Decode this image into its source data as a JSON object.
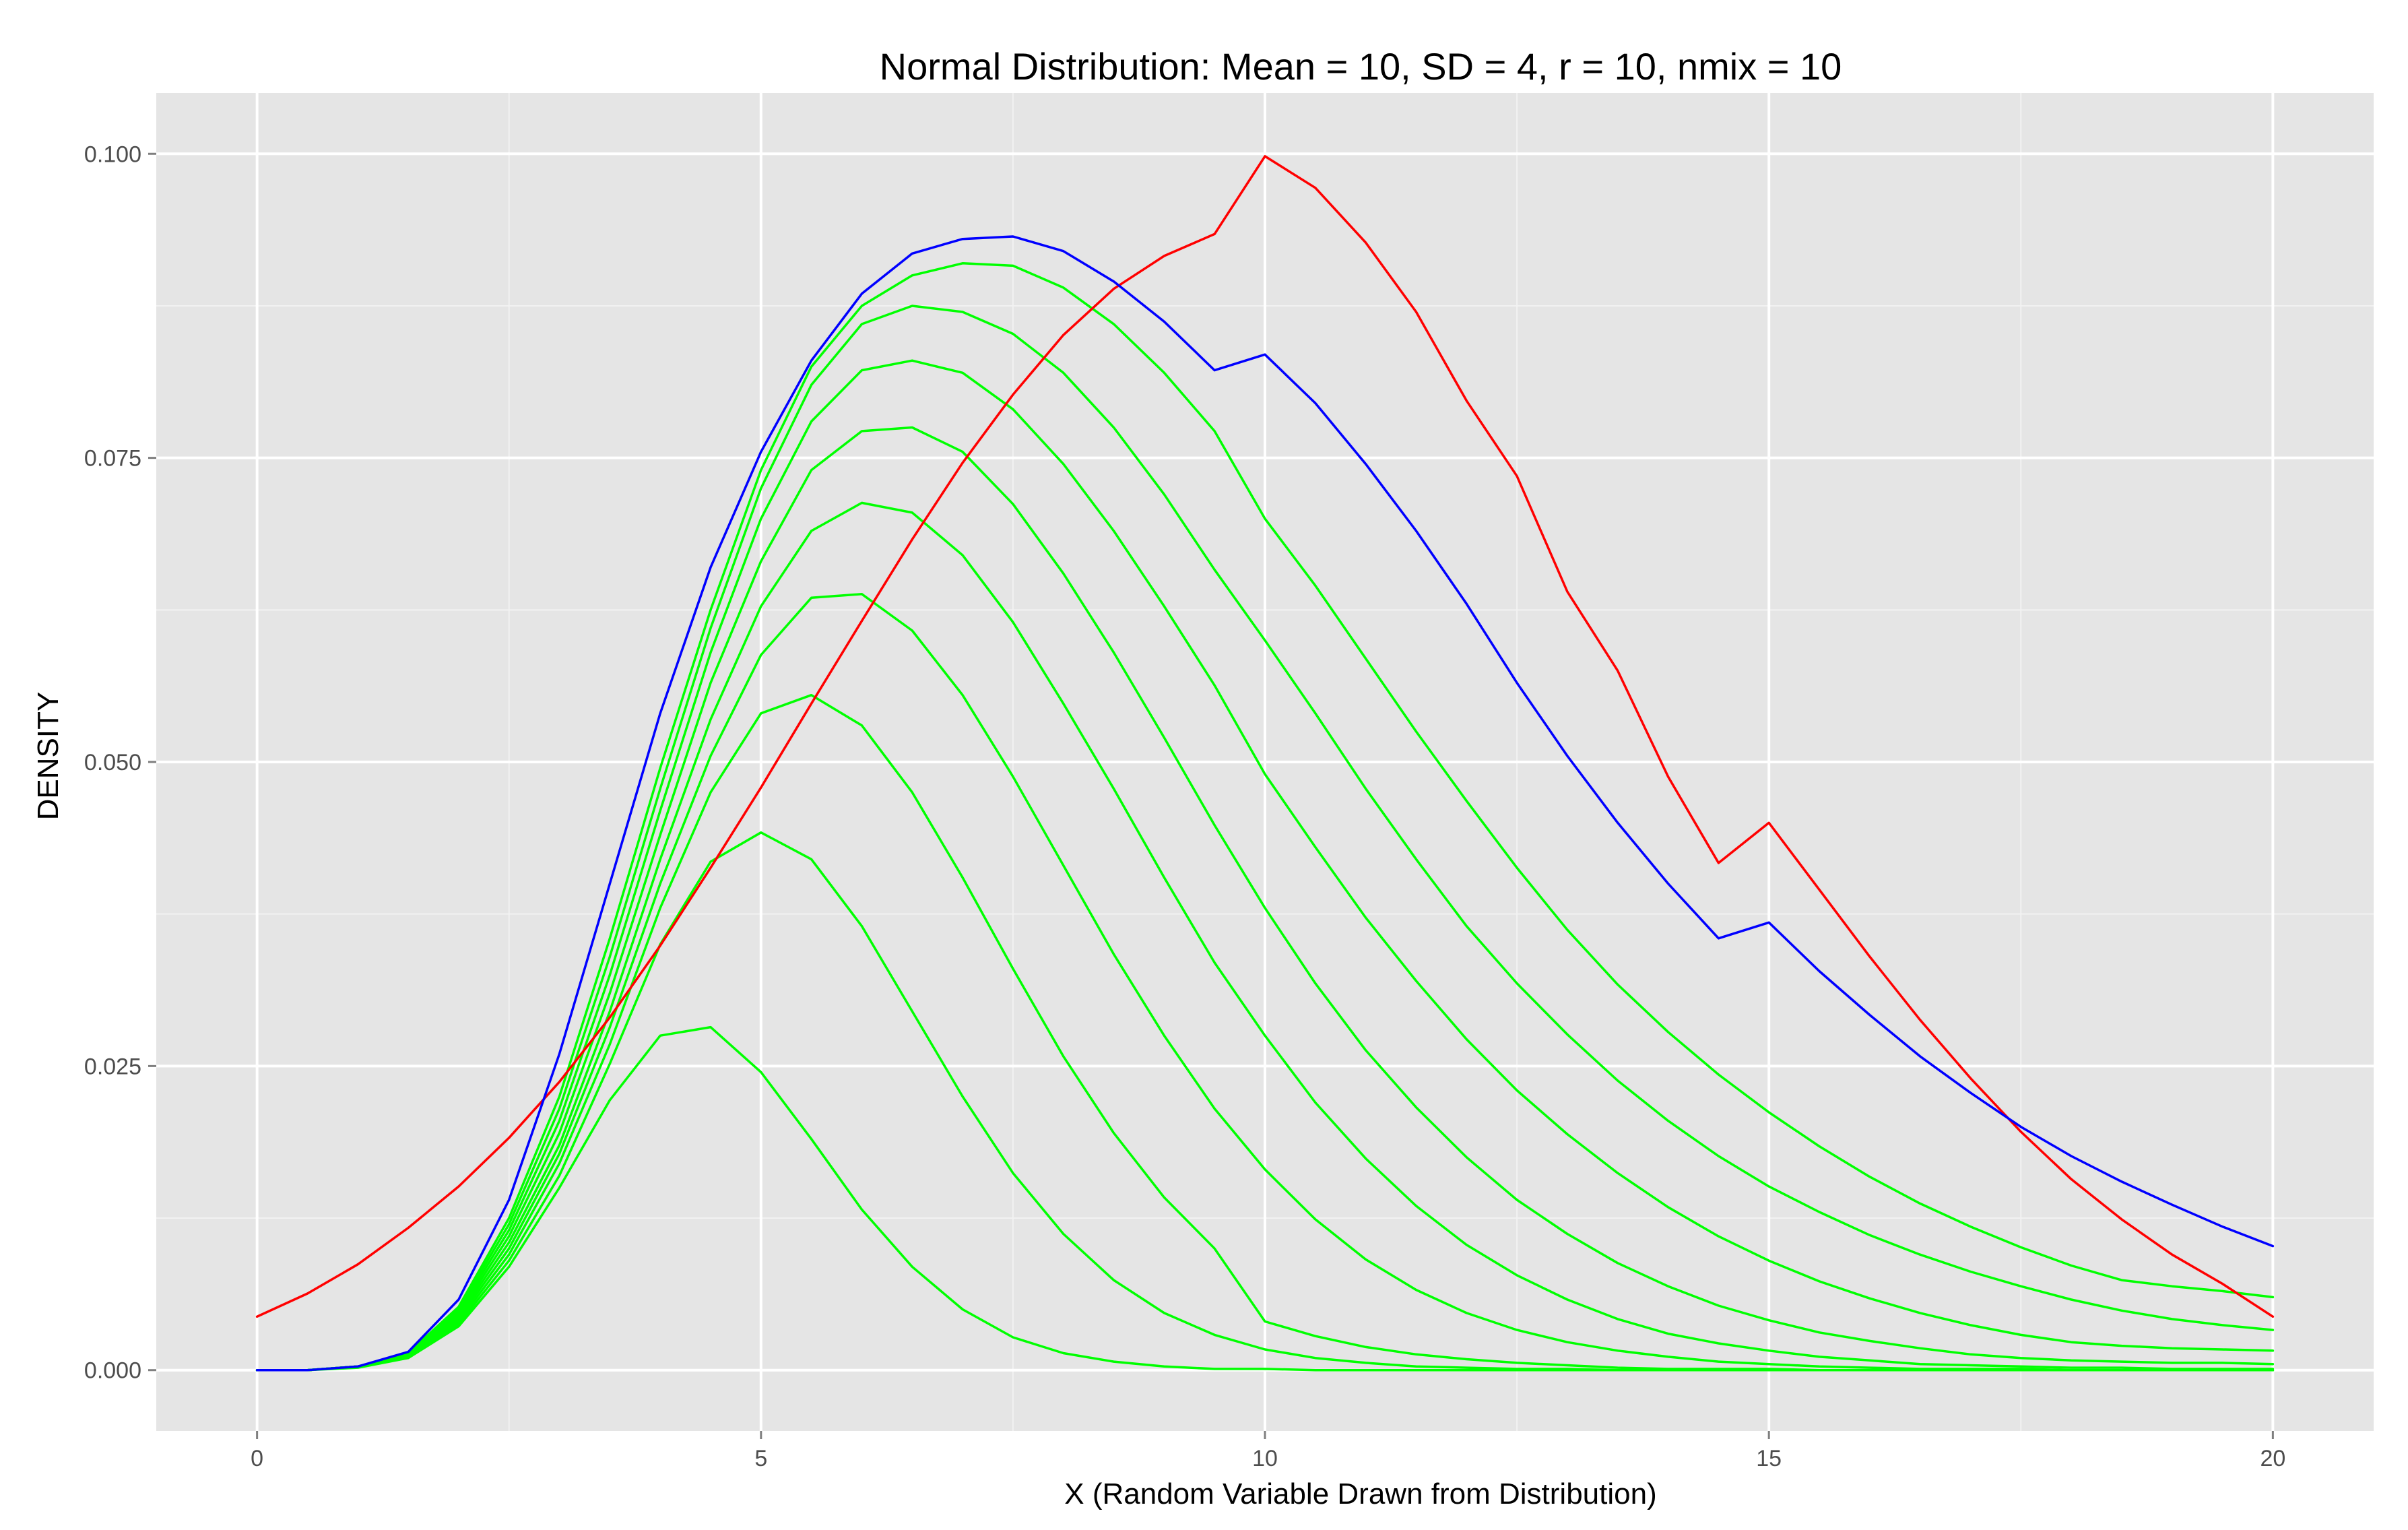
{
  "chart_data": {
    "type": "line",
    "title": "Normal Distribution: Mean = 10, SD = 4, r = 10, nmix = 10",
    "xlabel": "X (Random Variable Drawn from Distribution)",
    "ylabel": "DENSITY",
    "xlim": [
      -1,
      21
    ],
    "ylim": [
      -0.005,
      0.105
    ],
    "x_ticks": [
      0,
      5,
      10,
      15,
      20
    ],
    "x_tick_labels": [
      "0",
      "5",
      "10",
      "15",
      "20"
    ],
    "y_ticks": [
      0,
      0.025,
      0.05,
      0.075,
      0.1
    ],
    "y_tick_labels": [
      "0.000",
      "0.025",
      "0.050",
      "0.075",
      "0.100"
    ],
    "grid": true,
    "legend": "none",
    "background": "#e5e5e5",
    "colors": {
      "normal": "#ff0000",
      "mixture": "#0000ff",
      "component": "#00ff00"
    },
    "x": [
      0,
      0.5,
      1,
      1.5,
      2,
      2.5,
      3,
      3.5,
      4,
      4.5,
      5,
      5.5,
      6,
      6.5,
      7,
      7.5,
      8,
      8.5,
      9,
      9.5,
      10,
      10.5,
      11,
      11.5,
      12,
      12.5,
      13,
      13.5,
      14,
      14.5,
      15,
      15.5,
      16,
      16.5,
      17,
      17.5,
      18,
      18.5,
      19,
      19.5,
      20
    ],
    "series": [
      {
        "color": "red",
        "values": [
          0.0044,
          0.0063,
          0.0087,
          0.0117,
          0.0151,
          0.0191,
          0.0237,
          0.029,
          0.0349,
          0.0413,
          0.0479,
          0.0548,
          0.0616,
          0.0683,
          0.0746,
          0.0802,
          0.0851,
          0.0889,
          0.0916,
          0.0934,
          0.0998,
          0.0972,
          0.0927,
          0.087,
          0.0797,
          0.0735,
          0.064,
          0.0575,
          0.0488,
          0.0417,
          0.045,
          0.0395,
          0.034,
          0.0288,
          0.024,
          0.0196,
          0.0157,
          0.0124,
          0.0095,
          0.0071,
          0.0044
        ]
      },
      {
        "color": "blue",
        "values": [
          0.0,
          0.0,
          0.0003,
          0.0015,
          0.0058,
          0.014,
          0.026,
          0.04,
          0.054,
          0.066,
          0.0755,
          0.083,
          0.0885,
          0.0918,
          0.093,
          0.0932,
          0.092,
          0.0895,
          0.0862,
          0.0822,
          0.0835,
          0.0795,
          0.0745,
          0.069,
          0.063,
          0.0565,
          0.0505,
          0.045,
          0.04,
          0.0355,
          0.0368,
          0.0328,
          0.0292,
          0.0258,
          0.0228,
          0.02,
          0.0176,
          0.0155,
          0.0136,
          0.0118,
          0.0102
        ]
      },
      {
        "color": "green",
        "values": [
          0.0,
          0.0,
          0.0003,
          0.0014,
          0.0052,
          0.0125,
          0.0225,
          0.0355,
          0.0495,
          0.0625,
          0.074,
          0.0825,
          0.0875,
          0.09,
          0.091,
          0.0908,
          0.089,
          0.086,
          0.082,
          0.0772,
          0.07,
          0.0645,
          0.0585,
          0.0525,
          0.0468,
          0.0413,
          0.0362,
          0.0317,
          0.0278,
          0.0243,
          0.0212,
          0.0184,
          0.0159,
          0.0137,
          0.0118,
          0.0101,
          0.0086,
          0.0074,
          0.0069,
          0.0065,
          0.006
        ]
      },
      {
        "color": "green",
        "values": [
          0.0,
          0.0,
          0.0003,
          0.0013,
          0.005,
          0.012,
          0.0215,
          0.034,
          0.0478,
          0.061,
          0.0725,
          0.081,
          0.086,
          0.0875,
          0.087,
          0.0852,
          0.082,
          0.0775,
          0.072,
          0.0658,
          0.06,
          0.054,
          0.0478,
          0.042,
          0.0365,
          0.0318,
          0.0276,
          0.0238,
          0.0205,
          0.0176,
          0.0151,
          0.013,
          0.0111,
          0.0095,
          0.0081,
          0.0069,
          0.0058,
          0.0049,
          0.0042,
          0.0037,
          0.0033
        ]
      },
      {
        "color": "green",
        "values": [
          0.0,
          0.0,
          0.0003,
          0.0013,
          0.0048,
          0.0115,
          0.0205,
          0.0325,
          0.046,
          0.059,
          0.07,
          0.078,
          0.0822,
          0.083,
          0.082,
          0.079,
          0.0745,
          0.069,
          0.0628,
          0.0563,
          0.049,
          0.043,
          0.0372,
          0.032,
          0.0272,
          0.023,
          0.0194,
          0.0162,
          0.0134,
          0.011,
          0.009,
          0.0073,
          0.0059,
          0.0047,
          0.0037,
          0.0029,
          0.0023,
          0.002,
          0.0018,
          0.0017,
          0.0016
        ]
      },
      {
        "color": "green",
        "values": [
          0.0,
          0.0,
          0.0003,
          0.0012,
          0.0046,
          0.011,
          0.0195,
          0.031,
          0.044,
          0.0565,
          0.0665,
          0.074,
          0.0772,
          0.0775,
          0.0755,
          0.0712,
          0.0655,
          0.059,
          0.052,
          0.0448,
          0.038,
          0.0318,
          0.0263,
          0.0216,
          0.0175,
          0.014,
          0.0112,
          0.0088,
          0.0069,
          0.0053,
          0.0041,
          0.0031,
          0.0024,
          0.0018,
          0.0013,
          0.001,
          0.0008,
          0.0007,
          0.0006,
          0.0006,
          0.0005
        ]
      },
      {
        "color": "green",
        "values": [
          0.0,
          0.0,
          0.0003,
          0.0012,
          0.0044,
          0.0105,
          0.0185,
          0.0295,
          0.042,
          0.0535,
          0.0628,
          0.069,
          0.0713,
          0.0705,
          0.067,
          0.0615,
          0.0548,
          0.0478,
          0.0405,
          0.0335,
          0.0275,
          0.022,
          0.0174,
          0.0135,
          0.0103,
          0.0078,
          0.0058,
          0.0042,
          0.003,
          0.0022,
          0.0016,
          0.0011,
          0.0008,
          0.0005,
          0.0004,
          0.0003,
          0.0002,
          0.0002,
          0.0001,
          0.0001,
          0.0001
        ]
      },
      {
        "color": "green",
        "values": [
          0.0,
          0.0,
          0.0003,
          0.0011,
          0.0042,
          0.01,
          0.0178,
          0.0282,
          0.04,
          0.0505,
          0.0588,
          0.0635,
          0.0638,
          0.0608,
          0.0555,
          0.0488,
          0.0415,
          0.0342,
          0.0275,
          0.0215,
          0.0165,
          0.0124,
          0.0091,
          0.0066,
          0.0047,
          0.0033,
          0.0023,
          0.0016,
          0.0011,
          0.0007,
          0.0005,
          0.0003,
          0.0002,
          0.0001,
          0.0001,
          0.0001,
          0.0,
          0.0,
          0.0,
          0.0,
          0.0
        ]
      },
      {
        "color": "green",
        "values": [
          0.0,
          0.0,
          0.0003,
          0.0011,
          0.004,
          0.0095,
          0.017,
          0.0268,
          0.038,
          0.0475,
          0.054,
          0.0555,
          0.053,
          0.0475,
          0.0405,
          0.033,
          0.0258,
          0.0195,
          0.0142,
          0.01,
          0.004,
          0.0028,
          0.0019,
          0.0013,
          0.0009,
          0.0006,
          0.0004,
          0.0002,
          0.0001,
          0.0001,
          0.0001,
          0.0,
          0.0,
          0.0,
          0.0,
          0.0,
          0.0,
          0.0,
          0.0,
          0.0,
          0.0
        ]
      },
      {
        "color": "green",
        "values": [
          0.0,
          0.0,
          0.0003,
          0.001,
          0.0038,
          0.009,
          0.016,
          0.0252,
          0.035,
          0.0418,
          0.0442,
          0.042,
          0.0365,
          0.0295,
          0.0225,
          0.0162,
          0.0112,
          0.0074,
          0.0047,
          0.0029,
          0.0017,
          0.001,
          0.0006,
          0.0003,
          0.0002,
          0.0001,
          0.0001,
          0.0,
          0.0,
          0.0,
          0.0,
          0.0,
          0.0,
          0.0,
          0.0,
          0.0,
          0.0,
          0.0,
          0.0,
          0.0,
          0.0
        ]
      },
      {
        "color": "green",
        "values": [
          0.0,
          0.0,
          0.0002,
          0.001,
          0.0036,
          0.0085,
          0.015,
          0.0222,
          0.0275,
          0.0282,
          0.0245,
          0.019,
          0.0132,
          0.0085,
          0.005,
          0.0027,
          0.0014,
          0.0007,
          0.0003,
          0.0001,
          0.0001,
          0.0,
          0.0,
          0.0,
          0.0,
          0.0,
          0.0,
          0.0,
          0.0,
          0.0,
          0.0,
          0.0,
          0.0,
          0.0,
          0.0,
          0.0,
          0.0,
          0.0,
          0.0,
          0.0,
          0.0
        ]
      }
    ]
  }
}
